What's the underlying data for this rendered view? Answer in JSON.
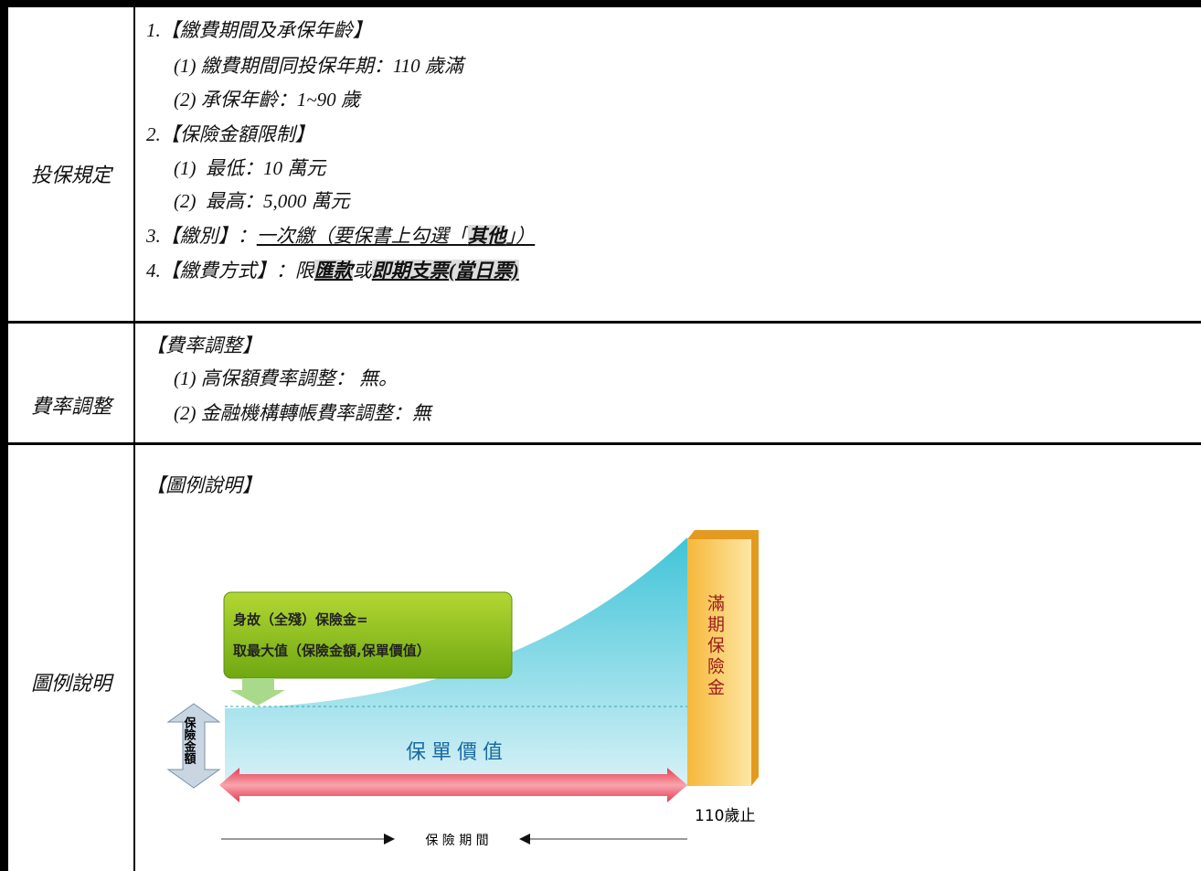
{
  "rows": [
    {
      "label": "投保規定",
      "lines": [
        [
          "1.【繳費期間及承保年齡】"
        ],
        [
          "(1) 繳費期間同投保年期：110 歲滿"
        ],
        [
          "(2) 承保年齡：1~90 歲"
        ],
        [
          "2.【保險金額限制】"
        ],
        [
          "(1)  最低：10 萬元"
        ],
        [
          "(2)  最高：5,000 萬元"
        ],
        [
          "3.【繳別】：",
          "一次繳（要保書上勾選「",
          "其他",
          "」）"
        ],
        [
          "4.【繳費方式】：限",
          "匯款",
          "或",
          "即期支票(當日票)"
        ]
      ]
    },
    {
      "label": "費率調整",
      "lines": [
        [
          "【費率調整】"
        ],
        [
          "(1) 高保額費率調整： 無。"
        ],
        [
          "(2) 金融機構轉帳費率調整：無"
        ]
      ]
    },
    {
      "label": "圖例說明",
      "lines": [
        [
          "【圖例說明】"
        ]
      ],
      "diagram": {
        "death_benefit": [
          "身故（全殘）保險金=",
          "取最大值（保險金額,保單價值）"
        ],
        "maturity": "滿期保險金",
        "sum_insured": "保險金額",
        "policy_value": "保單價值",
        "end_age": "110歲止",
        "period": "保 險 期 間"
      }
    }
  ]
}
